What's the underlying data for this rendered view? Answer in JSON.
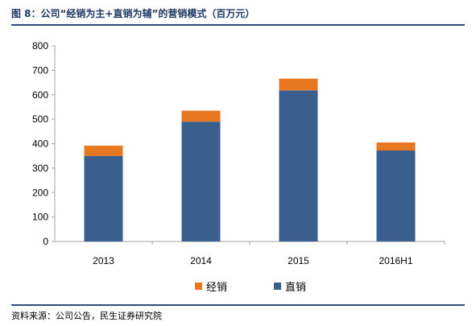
{
  "title": "图 8：公司“经销为主+直销为辅”的营销模式（百万元）",
  "source": "资料来源：公司公告，民生证券研究院",
  "colors": {
    "direct": "#3a5f8f",
    "distributor": "#e87722",
    "rule": "#2e4f7c",
    "axis": "#a6a6a6"
  },
  "chart_data": {
    "type": "bar",
    "stacked": true,
    "categories": [
      "2013",
      "2014",
      "2015",
      "2016H1"
    ],
    "series": [
      {
        "name": "直销",
        "values": [
          350,
          490,
          618,
          372
        ]
      },
      {
        "name": "经销",
        "values": [
          42,
          45,
          48,
          33
        ]
      }
    ],
    "yticks": [
      "0",
      "100",
      "200",
      "300",
      "400",
      "500",
      "600",
      "700",
      "800"
    ],
    "ylim": [
      0,
      800
    ],
    "grid": false,
    "legend_position": "bottom",
    "legend_order": [
      "经销",
      "直销"
    ]
  }
}
